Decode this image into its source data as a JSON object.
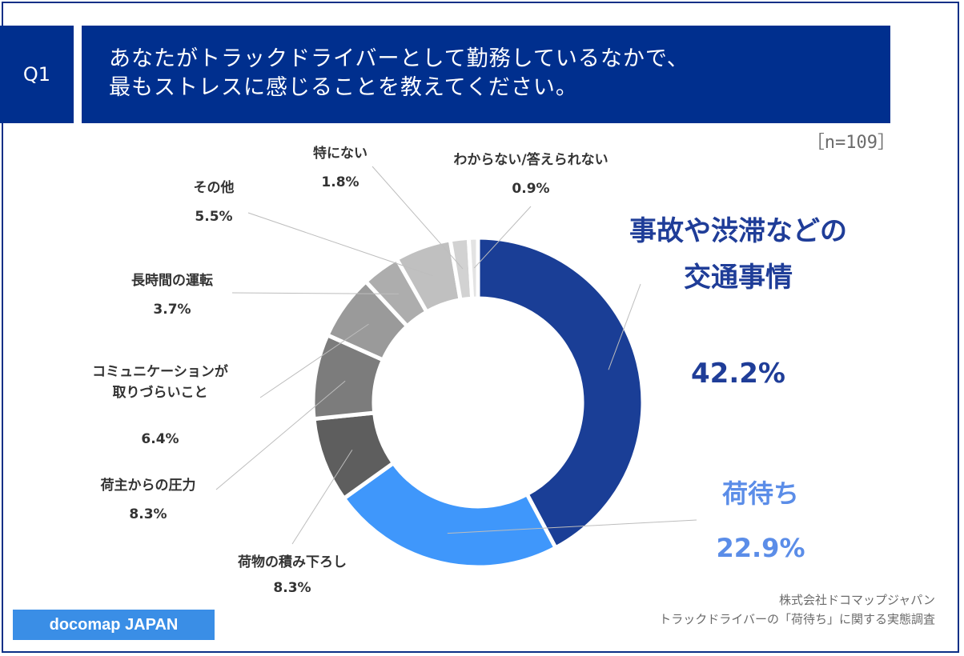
{
  "question": {
    "number": "Q1",
    "line1": "あなたがトラックドライバーとして勤務しているなかで、",
    "line2": "最もストレスに感じることを教えてください。"
  },
  "sample_size": "［n=109］",
  "source": {
    "line1": "株式会社ドコマップジャパン",
    "line2": "トラックドライバーの「荷待ち」に関する実態調査"
  },
  "brand": "docomap JAPAN",
  "chart_data": {
    "type": "pie",
    "donut": true,
    "slices": [
      {
        "label": "事故や渋滞などの交通事情",
        "label_lines": [
          "事故や渋滞などの",
          "交通事情"
        ],
        "value": 42.2,
        "value_text": "42.2%",
        "color": "#1a3e96"
      },
      {
        "label": "荷待ち",
        "label_lines": [
          "荷待ち"
        ],
        "value": 22.9,
        "value_text": "22.9%",
        "color": "#3f97fb"
      },
      {
        "label": "荷物の積み下ろし",
        "label_lines": [
          "荷物の積み下ろし"
        ],
        "value": 8.3,
        "value_text": "8.3%",
        "color": "#5e5e5e"
      },
      {
        "label": "荷主からの圧力",
        "label_lines": [
          "荷主からの圧力"
        ],
        "value": 8.3,
        "value_text": "8.3%",
        "color": "#7c7c7c"
      },
      {
        "label": "コミュニケーションが取りづらいこと",
        "label_lines": [
          "コミュニケーションが",
          "取りづらいこと"
        ],
        "value": 6.4,
        "value_text": "6.4%",
        "color": "#9a9a9a"
      },
      {
        "label": "長時間の運転",
        "label_lines": [
          "長時間の運転"
        ],
        "value": 3.7,
        "value_text": "3.7%",
        "color": "#adadad"
      },
      {
        "label": "その他",
        "label_lines": [
          "その他"
        ],
        "value": 5.5,
        "value_text": "5.5%",
        "color": "#c0c0c0"
      },
      {
        "label": "特にない",
        "label_lines": [
          "特にない"
        ],
        "value": 1.8,
        "value_text": "1.8%",
        "color": "#d2d2d2"
      },
      {
        "label": "わからない/答えられない",
        "label_lines": [
          "わからない/答えられない"
        ],
        "value": 0.9,
        "value_text": "0.9%",
        "color": "#e3e3e3"
      }
    ]
  }
}
